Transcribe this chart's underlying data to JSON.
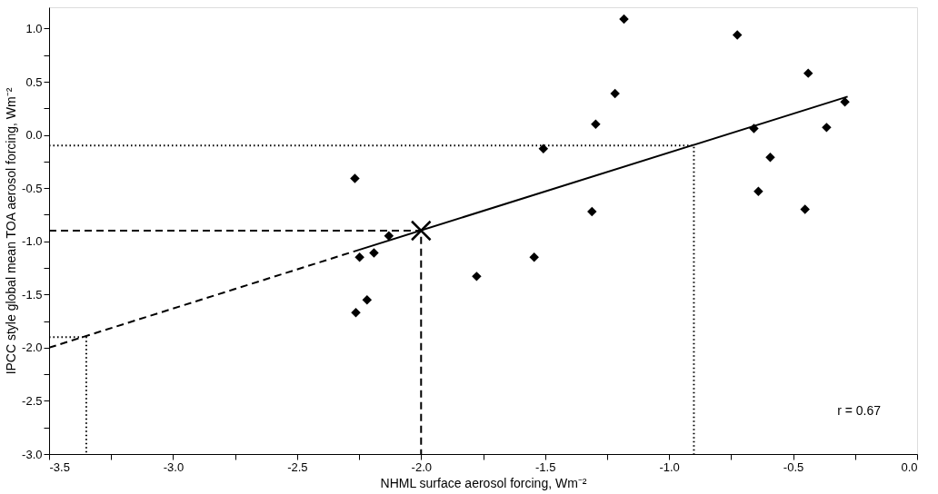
{
  "chart_data": {
    "type": "scatter",
    "xlabel": "NHML surface aerosol forcing, Wm⁻²",
    "ylabel": "IPCC style global mean TOA aerosol forcing, Wm⁻²",
    "annotations": [
      "r = 0.67"
    ],
    "xlim": [
      -3.5,
      0
    ],
    "ylim": [
      -3,
      1.2
    ],
    "xticks": [
      -3.5,
      {
        "value": -3.25,
        "label": null
      },
      {
        "value": -3,
        "label": "-3.0"
      },
      {
        "value": -2.75,
        "label": null
      },
      -2.5,
      {
        "value": -2.25,
        "label": null
      },
      {
        "value": -2,
        "label": "-2.0"
      },
      {
        "value": -1.75,
        "label": null
      },
      -1.5,
      {
        "value": -1.25,
        "label": null
      },
      {
        "value": -1,
        "label": "-1.0"
      },
      {
        "value": -0.75,
        "label": null
      },
      -0.5,
      {
        "value": -0.25,
        "label": null
      },
      {
        "value": 0,
        "label": "0.0"
      }
    ],
    "yticks": [
      {
        "value": -3,
        "label": "-3.0"
      },
      {
        "value": -2.75,
        "label": null
      },
      -2.5,
      {
        "value": -2.25,
        "label": null
      },
      {
        "value": -2,
        "label": "-2.0"
      },
      {
        "value": -1.75,
        "label": null
      },
      -1.5,
      {
        "value": -1.25,
        "label": null
      },
      {
        "value": -1,
        "label": "-1.0"
      },
      {
        "value": -0.75,
        "label": null
      },
      -0.5,
      {
        "value": -0.25,
        "label": null
      },
      {
        "value": 0,
        "label": "0.0"
      },
      {
        "value": 0.25,
        "label": null
      },
      0.5,
      {
        "value": 0.75,
        "label": null
      },
      {
        "value": 1,
        "label": "1.0"
      }
    ],
    "grid": false,
    "legend": false,
    "series": [
      {
        "type": "scatter",
        "marker": "diamond",
        "color": "#000000",
        "x": [
          -2.267,
          -2.13,
          -2.248,
          -2.19,
          -2.218,
          -2.263,
          -1.182,
          -0.725,
          -0.439,
          -0.291,
          -1.218,
          -1.296,
          -0.365,
          -0.658,
          -1.507,
          -0.592,
          -0.64,
          -0.452,
          -1.311,
          -1.544,
          -1.776
        ],
        "values": [
          -0.41,
          -0.95,
          -1.15,
          -1.11,
          -1.55,
          -1.67,
          1.09,
          0.94,
          0.58,
          0.31,
          0.39,
          0.1,
          0.07,
          0.06,
          -0.13,
          -0.21,
          -0.53,
          -0.7,
          -0.72,
          -1.15,
          -1.33
        ]
      },
      {
        "type": "line",
        "line_style": "solid",
        "color": "#000000",
        "x": [
          -2.25,
          -0.28
        ],
        "values": [
          -1.08,
          0.36
        ]
      },
      {
        "type": "line",
        "line_style": "dashed",
        "color": "#000000",
        "x": [
          -3.5,
          -2.25
        ],
        "values": [
          -2.0,
          -1.08
        ]
      },
      {
        "type": "line",
        "line_style": "dashed",
        "color": "#000000",
        "x": [
          -3.5,
          -2.0,
          -2.0
        ],
        "values": [
          -0.9,
          -0.9,
          -3.0
        ]
      },
      {
        "type": "line",
        "line_style": "dotted",
        "color": "#000000",
        "x": [
          -3.5,
          -0.9,
          -0.9
        ],
        "values": [
          -0.1,
          -0.1,
          -3.0
        ]
      },
      {
        "type": "line",
        "line_style": "dotted",
        "color": "#000000",
        "x": [
          -3.5,
          -3.35,
          -3.35
        ],
        "values": [
          -1.9,
          -1.9,
          -3.0
        ]
      },
      {
        "type": "scatter",
        "marker": "cross",
        "color": "#000000",
        "x": [
          -2.0
        ],
        "values": [
          -0.9
        ]
      }
    ]
  }
}
